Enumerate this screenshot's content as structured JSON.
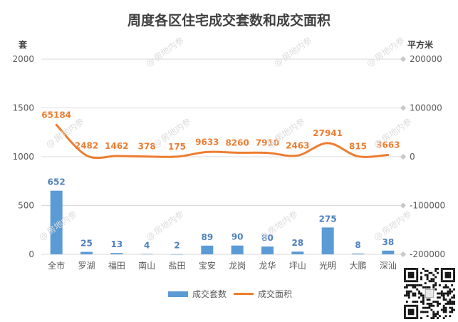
{
  "title": "周度各区住宅成交套数和成交面积",
  "watermark_text": "房地内参",
  "watermark_symbol": "@",
  "colors": {
    "bar": "#5B9BD5",
    "line": "#ED7D31",
    "bar_label": "#4F81BD",
    "line_label": "#ED7D31",
    "axis_text": "#595959",
    "grid": "#d9d9d9"
  },
  "qr_icon": "qr-code-icon",
  "chart_data": {
    "type": "bar",
    "title": "周度各区住宅成交套数和成交面积",
    "categories": [
      "全市",
      "罗湖",
      "福田",
      "南山",
      "盐田",
      "宝安",
      "龙岗",
      "龙华",
      "坪山",
      "光明",
      "大鹏",
      "深汕"
    ],
    "left_axis": {
      "unit": "套",
      "ylim": [
        0,
        2000
      ],
      "ticks": [
        "0",
        "500",
        "1000",
        "1500",
        "2000"
      ]
    },
    "right_axis": {
      "unit": "平方米",
      "ylim": [
        -200000,
        200000
      ],
      "ticks": [
        "-200000",
        "-100000",
        "0",
        "100000",
        "200000"
      ]
    },
    "grid": true,
    "legend_position": "bottom",
    "series": [
      {
        "name": "成交套数",
        "type": "bar",
        "axis": "left",
        "values": [
          652,
          25,
          13,
          4,
          2,
          89,
          90,
          80,
          28,
          275,
          8,
          38
        ]
      },
      {
        "name": "成交面积",
        "type": "line",
        "axis": "right",
        "smooth": true,
        "values": [
          65184,
          2482,
          1462,
          378,
          175,
          9633,
          8260,
          7910,
          2463,
          27941,
          815,
          3663
        ]
      }
    ]
  }
}
